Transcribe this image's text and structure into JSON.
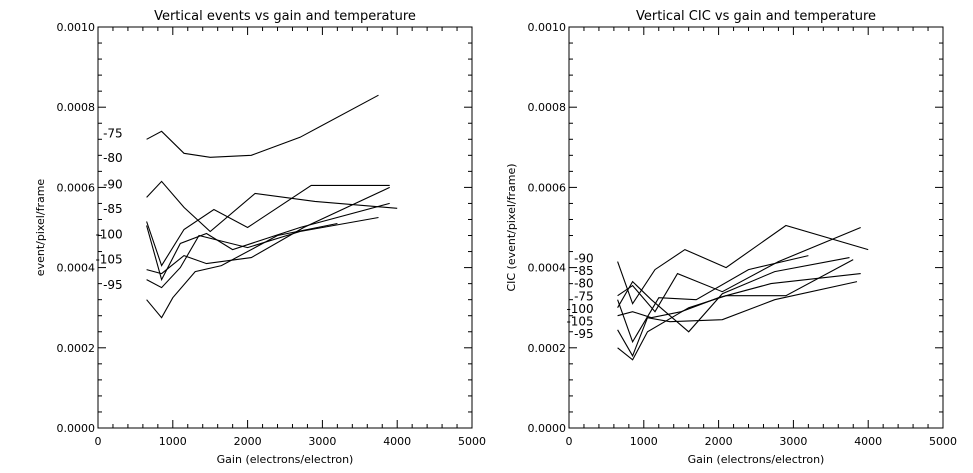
{
  "chart_data": [
    {
      "type": "line",
      "title": "Vertical events vs gain and temperature",
      "xlabel": "Gain (electrons/electron)",
      "ylabel": "event/pixel/frame",
      "xlim": [
        0,
        5000
      ],
      "ylim": [
        0,
        0.001
      ],
      "xticks": [
        "0",
        "1000",
        "2000",
        "3000",
        "4000",
        "5000"
      ],
      "yticks": [
        "0.0000",
        "0.0002",
        "0.0004",
        "0.0006",
        "0.0008",
        "0.0010"
      ],
      "grid": false,
      "legend": "none",
      "annotations": [
        {
          "text": "-75",
          "x": 330,
          "y": 0.000735
        },
        {
          "text": "-80",
          "x": 330,
          "y": 0.000673
        },
        {
          "text": "-90",
          "x": 330,
          "y": 0.000607
        },
        {
          "text": "-85",
          "x": 330,
          "y": 0.000546
        },
        {
          "text": "-100",
          "x": 330,
          "y": 0.000483
        },
        {
          "text": "-105",
          "x": 330,
          "y": 0.00042
        },
        {
          "text": "-95",
          "x": 330,
          "y": 0.000357
        }
      ],
      "series": [
        {
          "x": [
            650,
            850,
            1150,
            1500,
            2050,
            2700,
            3750
          ],
          "values": [
            0.00072,
            0.00074,
            0.000685,
            0.000675,
            0.00068,
            0.000725,
            0.00083
          ]
        },
        {
          "x": [
            650,
            850,
            1150,
            1500,
            2100,
            2900,
            4000
          ],
          "values": [
            0.000575,
            0.000615,
            0.00055,
            0.00049,
            0.000585,
            0.000565,
            0.000548
          ]
        },
        {
          "x": [
            650,
            850,
            1150,
            1550,
            2000,
            2850,
            3900
          ],
          "values": [
            0.000515,
            0.000405,
            0.000495,
            0.000545,
            0.0005,
            0.000605,
            0.000605
          ]
        },
        {
          "x": [
            650,
            850,
            1100,
            1450,
            1800,
            2700,
            3900
          ],
          "values": [
            0.000505,
            0.00037,
            0.00046,
            0.000485,
            0.000445,
            0.0005,
            0.00056
          ]
        },
        {
          "x": [
            650,
            850,
            1150,
            1450,
            2050,
            2750,
            3900
          ],
          "values": [
            0.000395,
            0.000385,
            0.00043,
            0.00041,
            0.000425,
            0.0005,
            0.0006
          ]
        },
        {
          "x": [
            650,
            850,
            1100,
            1350,
            2000,
            2700,
            3750
          ],
          "values": [
            0.00037,
            0.00035,
            0.0004,
            0.00048,
            0.00045,
            0.00049,
            0.000525
          ]
        },
        {
          "x": [
            650,
            850,
            1000,
            1300,
            1650,
            2400,
            3200
          ],
          "values": [
            0.00032,
            0.000275,
            0.000325,
            0.00039,
            0.000405,
            0.00048,
            0.00051
          ]
        }
      ]
    },
    {
      "type": "line",
      "title": "Vertical CIC vs gain and temperature",
      "xlabel": "Gain (electrons/electron)",
      "ylabel": "CIC (event/pixel/frame)",
      "xlim": [
        0,
        5000
      ],
      "ylim": [
        0,
        0.001
      ],
      "xticks": [
        "0",
        "1000",
        "2000",
        "3000",
        "4000",
        "5000"
      ],
      "yticks": [
        "0.0000",
        "0.0002",
        "0.0004",
        "0.0006",
        "0.0008",
        "0.0010"
      ],
      "grid": false,
      "legend": "none",
      "annotations": [
        {
          "text": "-90",
          "x": 330,
          "y": 0.000423
        },
        {
          "text": "-85",
          "x": 330,
          "y": 0.000392
        },
        {
          "text": "-80",
          "x": 330,
          "y": 0.00036
        },
        {
          "text": "-75",
          "x": 330,
          "y": 0.000328
        },
        {
          "text": "-100",
          "x": 330,
          "y": 0.000297
        },
        {
          "text": "-105",
          "x": 330,
          "y": 0.000265
        },
        {
          "text": "-95",
          "x": 330,
          "y": 0.000234
        }
      ],
      "series": [
        {
          "x": [
            650,
            850,
            1150,
            1550,
            2100,
            2900,
            4000
          ],
          "values": [
            0.000415,
            0.00031,
            0.000395,
            0.000445,
            0.0004,
            0.000505,
            0.000445
          ]
        },
        {
          "x": [
            650,
            850,
            1150,
            1450,
            2050,
            2800,
            3900
          ],
          "values": [
            0.00033,
            0.000355,
            0.00029,
            0.000385,
            0.00034,
            0.000415,
            0.0005
          ]
        },
        {
          "x": [
            650,
            850,
            1100,
            1600,
            2050,
            2750,
            3750
          ],
          "values": [
            0.0003,
            0.000365,
            0.00032,
            0.00024,
            0.000335,
            0.00039,
            0.000425
          ]
        },
        {
          "x": [
            650,
            850,
            1200,
            1700,
            2400,
            3200
          ],
          "values": [
            0.00032,
            0.000215,
            0.000325,
            0.00032,
            0.000395,
            0.00043
          ]
        },
        {
          "x": [
            650,
            850,
            1100,
            1500,
            2000,
            2700,
            3900
          ],
          "values": [
            0.00028,
            0.00029,
            0.000275,
            0.00029,
            0.000325,
            0.00036,
            0.000385
          ]
        },
        {
          "x": [
            650,
            850,
            1050,
            1350,
            2050,
            2750,
            3850
          ],
          "values": [
            0.000245,
            0.00018,
            0.000275,
            0.000265,
            0.00027,
            0.00032,
            0.000365
          ]
        },
        {
          "x": [
            650,
            850,
            1050,
            1600,
            2100,
            2900,
            3800
          ],
          "values": [
            0.0002,
            0.00017,
            0.00024,
            0.0003,
            0.00033,
            0.00033,
            0.00042
          ]
        }
      ]
    }
  ]
}
